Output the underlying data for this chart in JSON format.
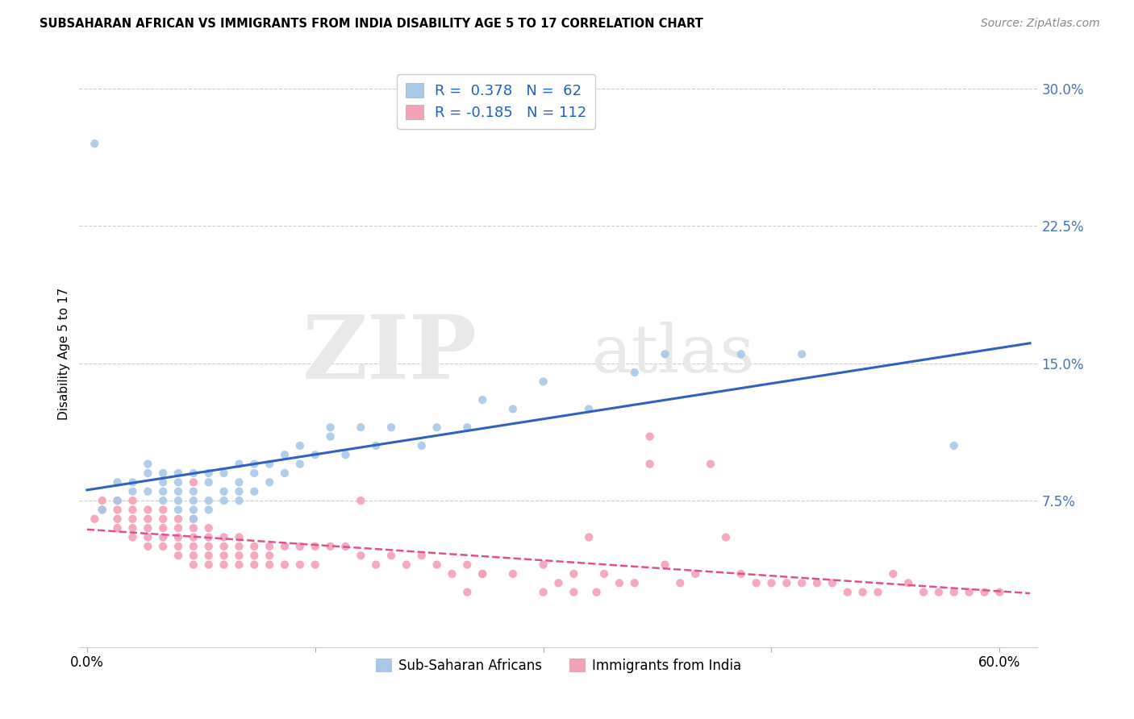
{
  "title": "SUBSAHARAN AFRICAN VS IMMIGRANTS FROM INDIA DISABILITY AGE 5 TO 17 CORRELATION CHART",
  "source": "Source: ZipAtlas.com",
  "ylabel": "Disability Age 5 to 17",
  "yticks": [
    0.0,
    0.075,
    0.15,
    0.225,
    0.3
  ],
  "ytick_labels": [
    "",
    "7.5%",
    "15.0%",
    "22.5%",
    "30.0%"
  ],
  "xticks": [
    0.0,
    0.15,
    0.3,
    0.45,
    0.6
  ],
  "xtick_labels": [
    "0.0%",
    "",
    "",
    "",
    "60.0%"
  ],
  "xlim": [
    -0.005,
    0.625
  ],
  "ylim": [
    -0.005,
    0.315
  ],
  "color_blue": "#a8c8e8",
  "color_pink": "#f4a0b5",
  "color_blue_line": "#3060c0",
  "color_pink_line": "#e05090",
  "watermark_zip": "ZIP",
  "watermark_atlas": "atlas",
  "blue_scatter_x": [
    0.005,
    0.01,
    0.02,
    0.02,
    0.03,
    0.03,
    0.04,
    0.04,
    0.04,
    0.05,
    0.05,
    0.05,
    0.05,
    0.06,
    0.06,
    0.06,
    0.06,
    0.06,
    0.07,
    0.07,
    0.07,
    0.07,
    0.07,
    0.08,
    0.08,
    0.08,
    0.08,
    0.09,
    0.09,
    0.09,
    0.1,
    0.1,
    0.1,
    0.1,
    0.11,
    0.11,
    0.11,
    0.12,
    0.12,
    0.13,
    0.13,
    0.14,
    0.14,
    0.15,
    0.16,
    0.16,
    0.17,
    0.18,
    0.19,
    0.2,
    0.22,
    0.23,
    0.25,
    0.26,
    0.28,
    0.3,
    0.33,
    0.36,
    0.38,
    0.43,
    0.47,
    0.57
  ],
  "blue_scatter_y": [
    0.27,
    0.07,
    0.075,
    0.085,
    0.08,
    0.085,
    0.08,
    0.09,
    0.095,
    0.075,
    0.08,
    0.085,
    0.09,
    0.07,
    0.075,
    0.08,
    0.085,
    0.09,
    0.065,
    0.07,
    0.075,
    0.08,
    0.09,
    0.07,
    0.075,
    0.085,
    0.09,
    0.075,
    0.08,
    0.09,
    0.075,
    0.08,
    0.085,
    0.095,
    0.08,
    0.09,
    0.095,
    0.085,
    0.095,
    0.09,
    0.1,
    0.095,
    0.105,
    0.1,
    0.11,
    0.115,
    0.1,
    0.115,
    0.105,
    0.115,
    0.105,
    0.115,
    0.115,
    0.13,
    0.125,
    0.14,
    0.125,
    0.145,
    0.155,
    0.155,
    0.155,
    0.105
  ],
  "pink_scatter_x": [
    0.005,
    0.01,
    0.01,
    0.02,
    0.02,
    0.02,
    0.02,
    0.03,
    0.03,
    0.03,
    0.03,
    0.03,
    0.04,
    0.04,
    0.04,
    0.04,
    0.04,
    0.05,
    0.05,
    0.05,
    0.05,
    0.05,
    0.06,
    0.06,
    0.06,
    0.06,
    0.06,
    0.07,
    0.07,
    0.07,
    0.07,
    0.07,
    0.07,
    0.08,
    0.08,
    0.08,
    0.08,
    0.08,
    0.09,
    0.09,
    0.09,
    0.09,
    0.1,
    0.1,
    0.1,
    0.1,
    0.11,
    0.11,
    0.11,
    0.12,
    0.12,
    0.12,
    0.13,
    0.13,
    0.14,
    0.14,
    0.15,
    0.15,
    0.16,
    0.17,
    0.18,
    0.18,
    0.19,
    0.2,
    0.21,
    0.22,
    0.23,
    0.24,
    0.25,
    0.26,
    0.28,
    0.3,
    0.32,
    0.34,
    0.36,
    0.37,
    0.38,
    0.4,
    0.41,
    0.43,
    0.44,
    0.46,
    0.47,
    0.48,
    0.49,
    0.5,
    0.52,
    0.54,
    0.55,
    0.56,
    0.57,
    0.58,
    0.59,
    0.6,
    0.37,
    0.3,
    0.31,
    0.32,
    0.26,
    0.33,
    0.35,
    0.39,
    0.42,
    0.45,
    0.51,
    0.53,
    0.07,
    0.25,
    0.335
  ],
  "pink_scatter_y": [
    0.065,
    0.07,
    0.075,
    0.06,
    0.065,
    0.07,
    0.075,
    0.055,
    0.06,
    0.065,
    0.07,
    0.075,
    0.05,
    0.055,
    0.06,
    0.065,
    0.07,
    0.05,
    0.055,
    0.06,
    0.065,
    0.07,
    0.045,
    0.05,
    0.055,
    0.06,
    0.065,
    0.04,
    0.045,
    0.05,
    0.055,
    0.06,
    0.065,
    0.04,
    0.045,
    0.05,
    0.055,
    0.06,
    0.04,
    0.045,
    0.05,
    0.055,
    0.04,
    0.045,
    0.05,
    0.055,
    0.04,
    0.045,
    0.05,
    0.04,
    0.045,
    0.05,
    0.04,
    0.05,
    0.04,
    0.05,
    0.04,
    0.05,
    0.05,
    0.05,
    0.045,
    0.075,
    0.04,
    0.045,
    0.04,
    0.045,
    0.04,
    0.035,
    0.04,
    0.035,
    0.035,
    0.04,
    0.035,
    0.035,
    0.03,
    0.095,
    0.04,
    0.035,
    0.095,
    0.035,
    0.03,
    0.03,
    0.03,
    0.03,
    0.03,
    0.025,
    0.025,
    0.03,
    0.025,
    0.025,
    0.025,
    0.025,
    0.025,
    0.025,
    0.11,
    0.025,
    0.03,
    0.025,
    0.035,
    0.055,
    0.03,
    0.03,
    0.055,
    0.03,
    0.025,
    0.035,
    0.085,
    0.025,
    0.025
  ]
}
